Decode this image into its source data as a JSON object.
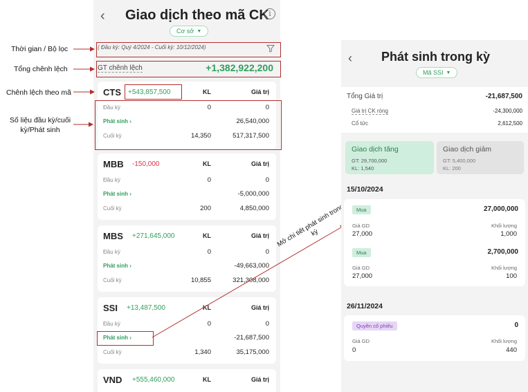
{
  "annotations": {
    "time_filter": "Thời gian / Bộ lọc",
    "total_diff": "Tổng chênh lệch",
    "diff_by_code": "Chênh lệch theo mã",
    "figures": "Số liệu đầu kỳ/cuối kỳ/Phát sinh",
    "open_detail": "Mở chi tiết phát sinh trong kỳ"
  },
  "list_screen": {
    "title": "Giao dịch theo mã CK",
    "segment": "Cơ sở",
    "period": "( Đầu kỳ: Quý 4/2024 - Cuối kỳ: 10/12/2024)",
    "total_label": "GT chênh lệch",
    "total_value": "+1,382,922,200",
    "col_kl": "KL",
    "col_gt": "Giá trị",
    "row_labels": {
      "open": "Đầu kỳ",
      "arising": "Phát sinh",
      "close": "Cuối kỳ"
    },
    "stocks": [
      {
        "symbol": "CTS",
        "diff": "+543,857,500",
        "sign": "pos",
        "open_kl": "0",
        "open_gt": "0",
        "arising_gt": "26,540,000",
        "close_kl": "14,350",
        "close_gt": "517,317,500"
      },
      {
        "symbol": "MBB",
        "diff": "-150,000",
        "sign": "neg",
        "open_kl": "0",
        "open_gt": "0",
        "arising_gt": "-5,000,000",
        "close_kl": "200",
        "close_gt": "4,850,000"
      },
      {
        "symbol": "MBS",
        "diff": "+271,645,000",
        "sign": "pos",
        "open_kl": "0",
        "open_gt": "0",
        "arising_gt": "-49,663,000",
        "close_kl": "10,855",
        "close_gt": "321,308,000"
      },
      {
        "symbol": "SSI",
        "diff": "+13,487,500",
        "sign": "pos",
        "open_kl": "0",
        "open_gt": "0",
        "arising_gt": "-21,687,500",
        "close_kl": "1,340",
        "close_gt": "35,175,000"
      },
      {
        "symbol": "VND",
        "diff": "+555,460,000",
        "sign": "pos"
      }
    ]
  },
  "detail_screen": {
    "title": "Phát sinh trong kỳ",
    "segment": "Mã SSI",
    "total_label": "Tổng Giá trị",
    "total_value": "-21,687,500",
    "net_label": "Giá trị CK ròng",
    "net_value": "-24,300,000",
    "dividend_label": "Cổ tức",
    "dividend_value": "2,612,500",
    "tab_increase": {
      "title": "Giao dịch tăng",
      "gt": "GT: 29,700,000",
      "kl": "KL: 1,540"
    },
    "tab_decrease": {
      "title": "Giao dịch giảm",
      "gt": "GT: 5,400,000",
      "kl": "KL: 200"
    },
    "groups": [
      {
        "date": "15/10/2024",
        "items": [
          {
            "tag": "Mua",
            "amount": "27,000,000",
            "price_label": "Giá GD",
            "price": "27,000",
            "qty_label": "Khối lượng",
            "qty": "1,000"
          },
          {
            "tag": "Mua",
            "amount": "2,700,000",
            "price_label": "Giá GD",
            "price": "27,000",
            "qty_label": "Khối lượng",
            "qty": "100"
          }
        ]
      },
      {
        "date": "26/11/2024",
        "items": [
          {
            "tag": "Quyền cổ phiếu",
            "amount": "0",
            "price_label": "Giá GD",
            "price": "0",
            "qty_label": "Khối lượng",
            "qty": "440"
          }
        ]
      }
    ]
  },
  "colors": {
    "positive": "#2f9e5c",
    "negative": "#d9354a",
    "annotation": "#b32d2d",
    "tab_active": "#cfeedd",
    "tab_inactive": "#e3e3e3"
  },
  "icons": [
    "chevron-left-icon",
    "info-icon",
    "filter-icon",
    "chevron-down-icon",
    "chevron-right-icon"
  ]
}
